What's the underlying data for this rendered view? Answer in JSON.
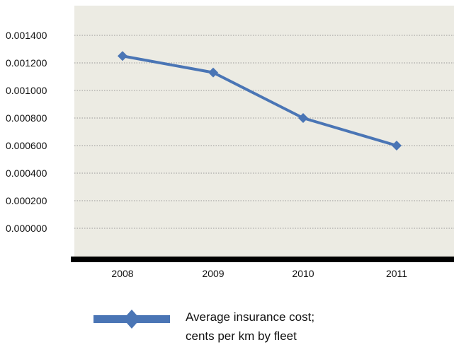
{
  "chart_data": {
    "type": "line",
    "categories": [
      "2008",
      "2009",
      "2010",
      "2011"
    ],
    "series": [
      {
        "name": "Average insurance cost; cents per km by fleet",
        "values": [
          0.00125,
          0.00113,
          0.0008,
          0.0006
        ]
      }
    ],
    "y_ticks": [
      "0.001400",
      "0.001200",
      "0.001000",
      "0.000800",
      "0.000600",
      "0.000400",
      "0.000200",
      "0.000000"
    ],
    "y_tick_values": [
      0.0014,
      0.0012,
      0.001,
      0.0008,
      0.0006,
      0.0004,
      0.0002,
      0.0
    ],
    "legend": {
      "line1": "Average insurance cost;",
      "line2": "cents per km by fleet",
      "placement": "bottom"
    },
    "grid": true,
    "colors": {
      "plot_background": "#ecebe3",
      "series_line": "#4a75b5",
      "gridline": "#9a9a9a",
      "axis_bar": "#000000"
    }
  }
}
